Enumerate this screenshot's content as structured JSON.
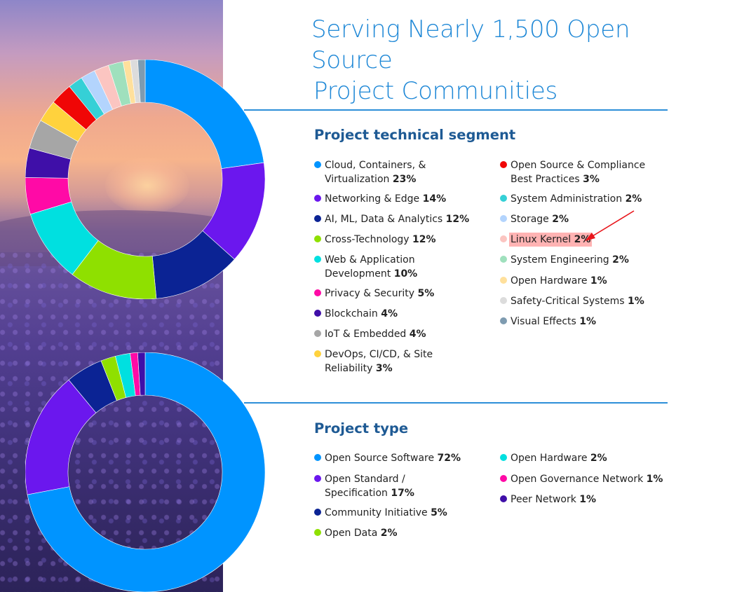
{
  "title": [
    "Serving Nearly 1,500 Open Source",
    "Project Communities"
  ],
  "segment": {
    "heading": "Project technical segment",
    "items": [
      {
        "lines": [
          "Cloud, Containers, &",
          "Virtualization"
        ],
        "pct": "23%",
        "color": "#0094ff"
      },
      {
        "lines": [
          "Networking & Edge"
        ],
        "pct": "14%",
        "color": "#6b17ee"
      },
      {
        "lines": [
          "AI, ML, Data & Analytics"
        ],
        "pct": "12%",
        "color": "#0b2394"
      },
      {
        "lines": [
          "Cross-Technology"
        ],
        "pct": "12%",
        "color": "#8fe000"
      },
      {
        "lines": [
          "Web & Application",
          "Development"
        ],
        "pct": "10%",
        "color": "#00e0e0"
      },
      {
        "lines": [
          "Privacy & Security"
        ],
        "pct": "5%",
        "color": "#ff0aa6"
      },
      {
        "lines": [
          "Blockchain"
        ],
        "pct": "4%",
        "color": "#3f0fa8"
      },
      {
        "lines": [
          "IoT & Embedded"
        ],
        "pct": "4%",
        "color": "#a6a6a6"
      },
      {
        "lines": [
          "DevOps, CI/CD, & Site",
          "Reliability"
        ],
        "pct": "3%",
        "color": "#ffd23d"
      },
      {
        "lines": [
          "Open Source & Compliance",
          "Best Practices"
        ],
        "pct": "3%",
        "color": "#f00606"
      },
      {
        "lines": [
          "System Administration"
        ],
        "pct": "2%",
        "color": "#35d0d6"
      },
      {
        "lines": [
          "Storage"
        ],
        "pct": "2%",
        "color": "#b3d4fd"
      },
      {
        "lines": [
          "Linux Kernel"
        ],
        "pct": "2%",
        "color": "#fbc5c1",
        "highlighted": true
      },
      {
        "lines": [
          "System Engineering"
        ],
        "pct": "2%",
        "color": "#9fe0bd"
      },
      {
        "lines": [
          "Open Hardware"
        ],
        "pct": "1%",
        "color": "#ffe09c"
      },
      {
        "lines": [
          "Safety-Critical Systems"
        ],
        "pct": "1%",
        "color": "#dcdcdc"
      },
      {
        "lines": [
          "Visual Effects"
        ],
        "pct": "1%",
        "color": "#7e9bb0"
      }
    ]
  },
  "type": {
    "heading": "Project type",
    "items": [
      {
        "lines": [
          "Open Source Software"
        ],
        "pct": "72%",
        "color": "#0094ff"
      },
      {
        "lines": [
          "Open Standard /",
          "Specification"
        ],
        "pct": "17%",
        "color": "#6b17ee"
      },
      {
        "lines": [
          "Community Initiative"
        ],
        "pct": "5%",
        "color": "#0b2394"
      },
      {
        "lines": [
          "Open Data"
        ],
        "pct": "2%",
        "color": "#8fe000"
      },
      {
        "lines": [
          "Open Hardware"
        ],
        "pct": "2%",
        "color": "#00e0e0"
      },
      {
        "lines": [
          "Open Governance Network"
        ],
        "pct": "1%",
        "color": "#ff0aa6"
      },
      {
        "lines": [
          "Peer Network"
        ],
        "pct": "1%",
        "color": "#3f0fa8"
      }
    ]
  },
  "chart_data": [
    {
      "type": "pie",
      "title": "Project technical segment",
      "categories": [
        "Cloud, Containers, & Virtualization",
        "Networking & Edge",
        "AI, ML, Data & Analytics",
        "Cross-Technology",
        "Web & Application Development",
        "Privacy & Security",
        "Blockchain",
        "IoT & Embedded",
        "DevOps, CI/CD, & Site Reliability",
        "Open Source & Compliance Best Practices",
        "System Administration",
        "Storage",
        "Linux Kernel",
        "System Engineering",
        "Open Hardware",
        "Safety-Critical Systems",
        "Visual Effects"
      ],
      "values": [
        23,
        14,
        12,
        12,
        10,
        5,
        4,
        4,
        3,
        3,
        2,
        2,
        2,
        2,
        1,
        1,
        1
      ],
      "colors": [
        "#0094ff",
        "#6b17ee",
        "#0b2394",
        "#8fe000",
        "#00e0e0",
        "#ff0aa6",
        "#3f0fa8",
        "#a6a6a6",
        "#ffd23d",
        "#f00606",
        "#35d0d6",
        "#b3d4fd",
        "#fbc5c1",
        "#9fe0bd",
        "#ffe09c",
        "#dcdcdc",
        "#7e9bb0"
      ],
      "donut": true,
      "legend": "right"
    },
    {
      "type": "pie",
      "title": "Project type",
      "categories": [
        "Open Source Software",
        "Open Standard / Specification",
        "Community Initiative",
        "Open Data",
        "Open Hardware",
        "Open Governance Network",
        "Peer Network"
      ],
      "values": [
        72,
        17,
        5,
        2,
        2,
        1,
        1
      ],
      "colors": [
        "#0094ff",
        "#6b17ee",
        "#0b2394",
        "#8fe000",
        "#00e0e0",
        "#ff0aa6",
        "#3f0fa8"
      ],
      "donut": true,
      "legend": "right"
    }
  ]
}
